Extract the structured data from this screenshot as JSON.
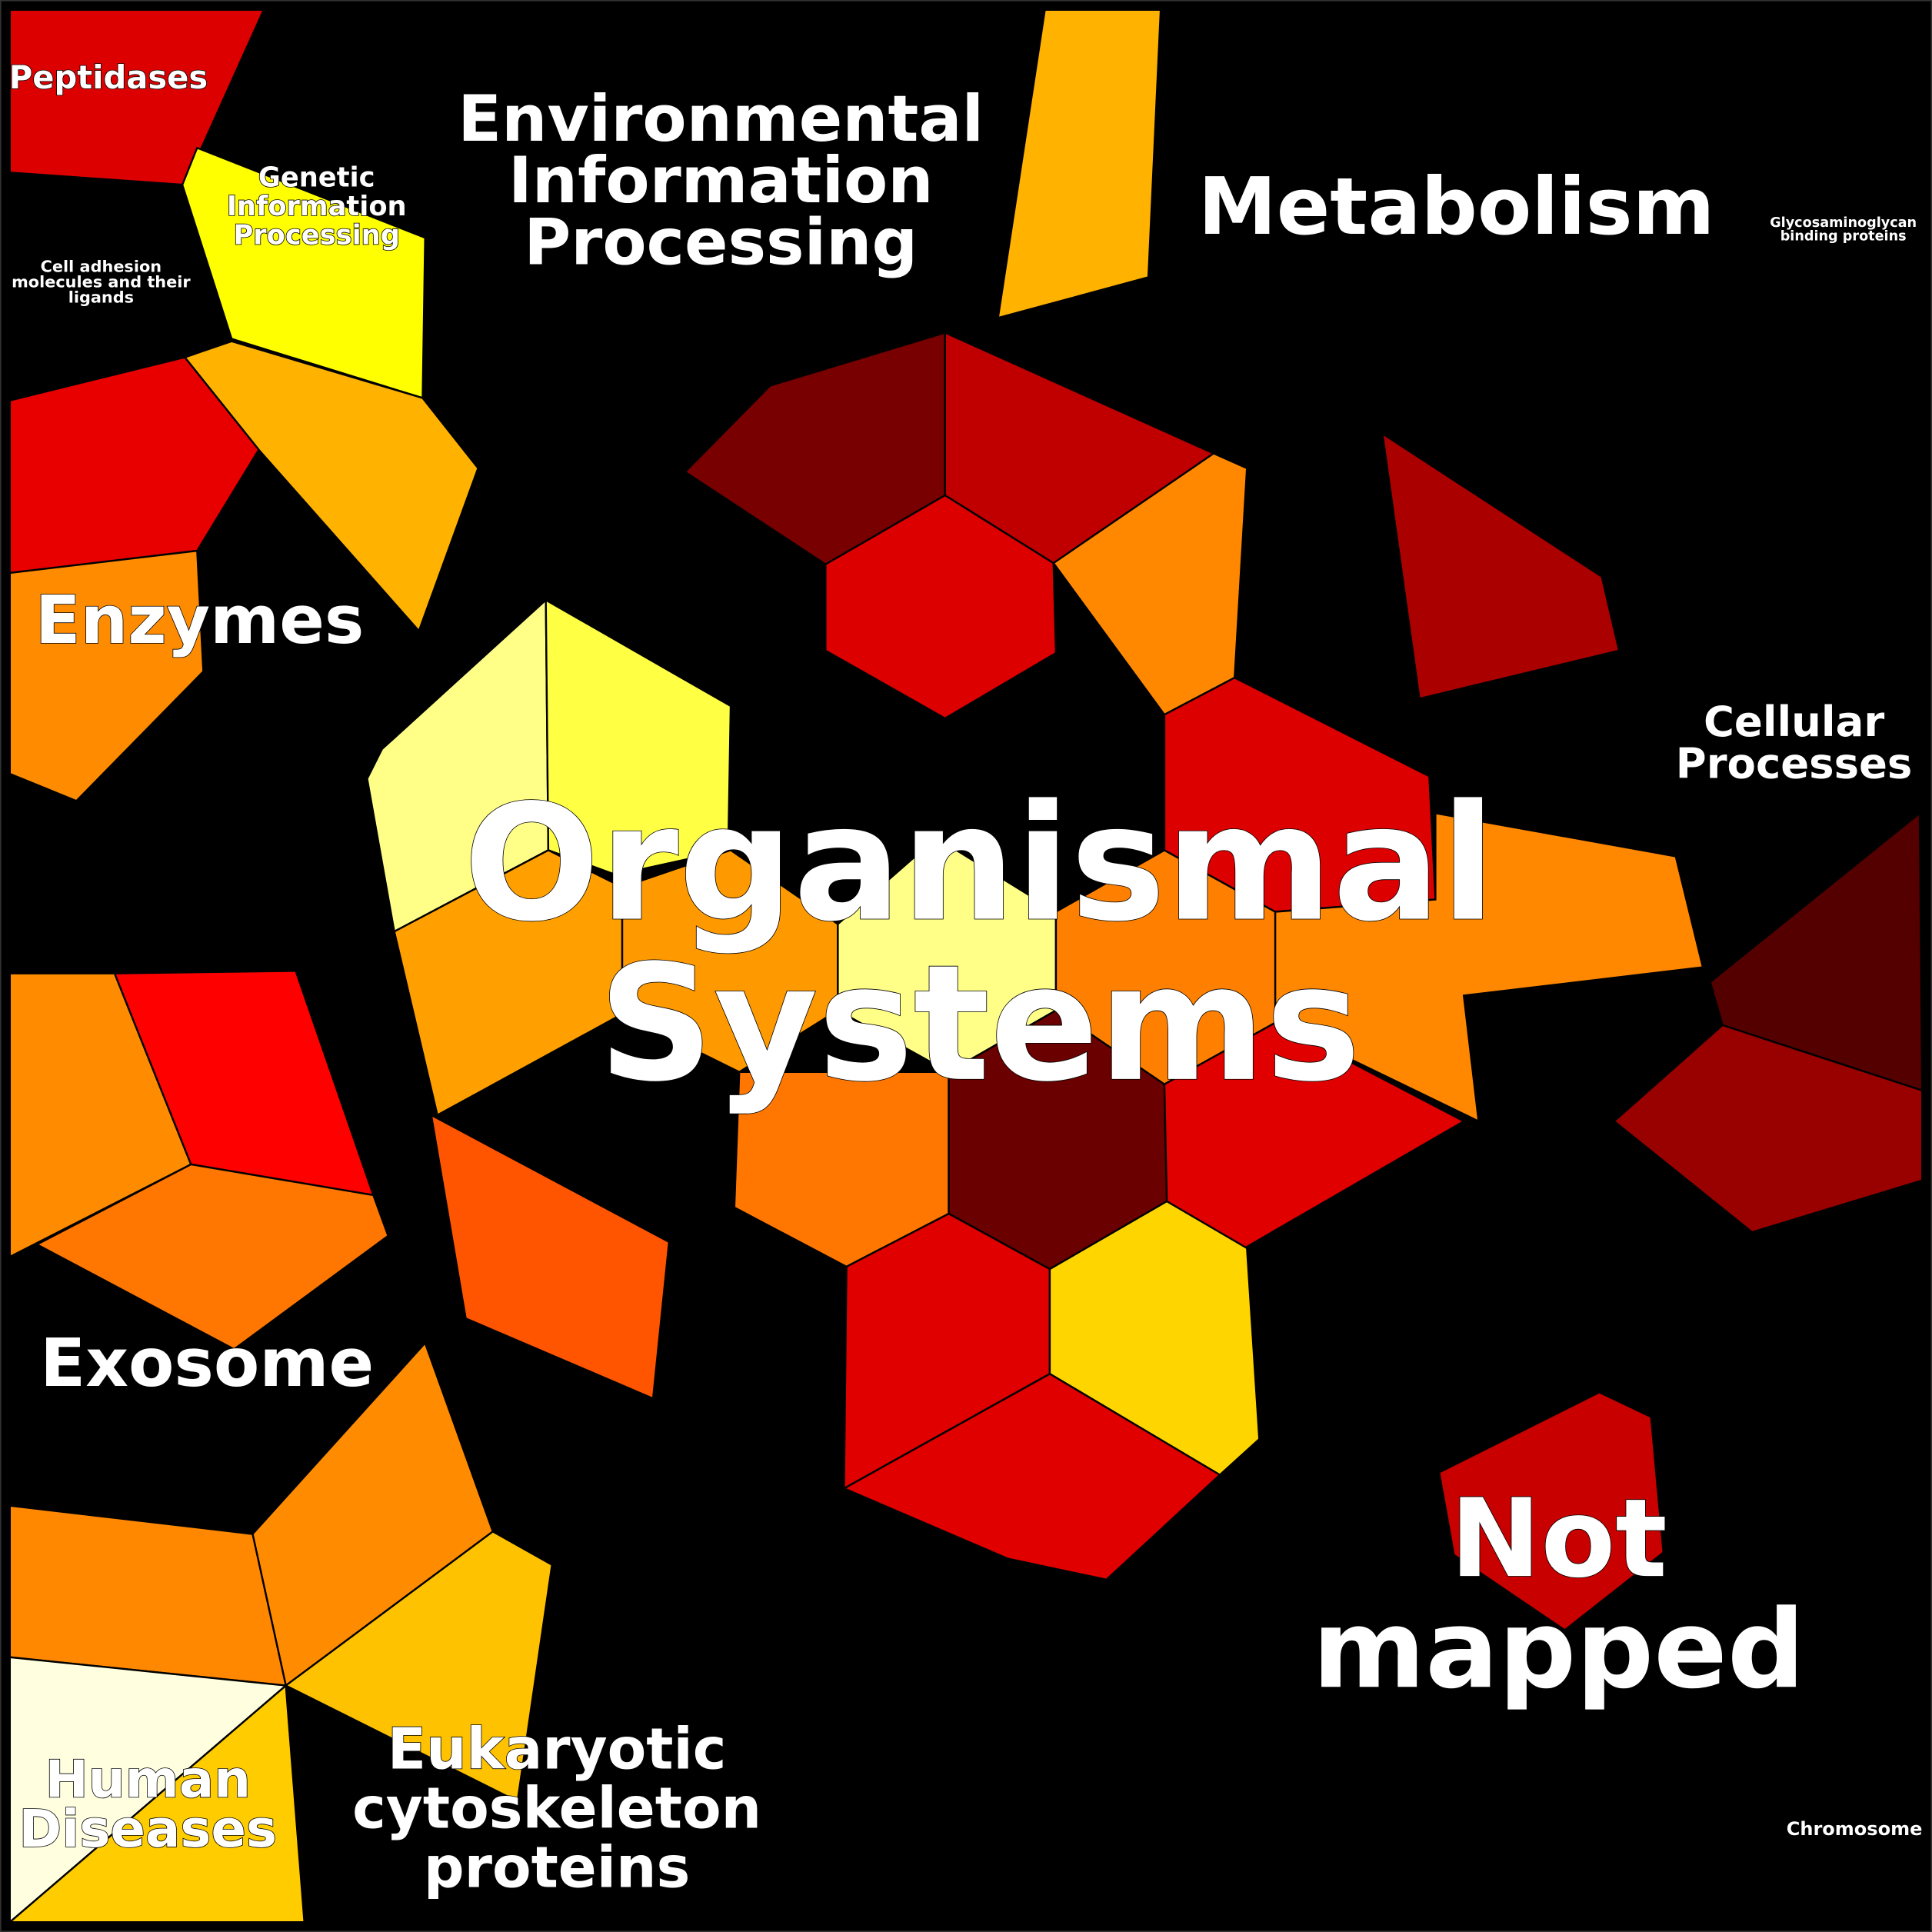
{
  "labels": [
    {
      "lines": [
        "Peptidases"
      ]
    },
    {
      "lines": [
        "Genetic",
        "Information",
        "Processing"
      ]
    },
    {
      "lines": [
        "Cell adhesion",
        "molecules and their",
        "ligands"
      ]
    },
    {
      "lines": [
        "Environmental",
        "Information",
        "Processing"
      ]
    },
    {
      "lines": [
        "Metabolism"
      ]
    },
    {
      "lines": [
        "Glycosaminoglycan",
        "binding proteins"
      ]
    },
    {
      "lines": [
        "Enzymes"
      ]
    },
    {
      "lines": [
        "Cellular",
        "Processes"
      ]
    },
    {
      "lines": [
        "Organismal",
        "Systems"
      ]
    },
    {
      "lines": [
        "Exosome"
      ]
    },
    {
      "lines": [
        "Not",
        "mapped"
      ]
    },
    {
      "lines": [
        "Human",
        "Diseases"
      ]
    },
    {
      "lines": [
        "Eukaryotic",
        "cytoskeleton",
        "proteins"
      ]
    },
    {
      "lines": [
        "Chromosome"
      ]
    }
  ]
}
